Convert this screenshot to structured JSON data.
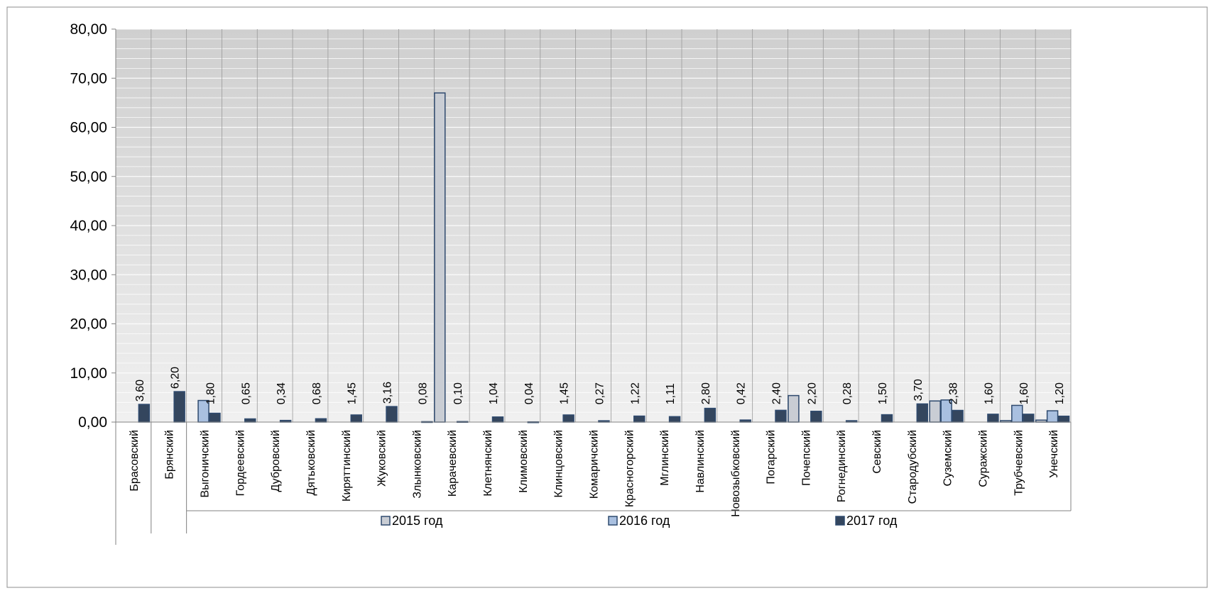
{
  "chart_data": {
    "type": "bar",
    "title": "",
    "xlabel": "",
    "ylabel": "",
    "ylim": [
      0,
      80
    ],
    "yticks": [
      "0,00",
      "10,00",
      "20,00",
      "30,00",
      "40,00",
      "50,00",
      "60,00",
      "70,00",
      "80,00"
    ],
    "grid": true,
    "legend_position": "bottom",
    "categories": [
      "Брасовский",
      "Брянский",
      "Выгоничский",
      "Гордеевский",
      "Дубровский",
      "Дятьковский",
      "Киряттинский",
      "Жуковский",
      "Злынковский",
      "Карачевский",
      "Клетнянский",
      "Климовский",
      "Клинцовский",
      "Комаричский",
      "Красногорский",
      "Мглинский",
      "Навлинский",
      "Новозыбковский",
      "Погарский",
      "Почепский",
      "Рогнединский",
      "Севский",
      "Стародубский",
      "Суземский",
      "Суражский",
      "Трубчевский",
      "Унечский"
    ],
    "series": [
      {
        "name": "2015 год",
        "values": [
          0,
          0,
          0,
          0,
          0,
          0,
          0,
          0,
          0,
          67.0,
          0,
          0,
          0,
          0,
          0,
          0,
          0,
          0,
          0,
          5.4,
          0,
          0,
          0,
          4.3,
          0,
          0.3,
          0.4
        ]
      },
      {
        "name": "2016 год",
        "values": [
          0,
          0,
          4.4,
          0,
          0,
          0,
          0,
          0,
          0,
          0,
          0,
          0,
          0,
          0,
          0,
          0,
          0,
          0,
          0,
          0,
          0,
          0,
          0,
          4.5,
          0,
          3.4,
          2.3
        ]
      },
      {
        "name": "2017 год",
        "values": [
          3.6,
          6.2,
          1.8,
          0.65,
          0.34,
          0.68,
          1.45,
          3.16,
          0.08,
          0.1,
          1.04,
          0.04,
          1.45,
          0.27,
          1.22,
          1.11,
          2.8,
          0.42,
          2.4,
          2.2,
          0.28,
          1.5,
          3.7,
          2.38,
          1.6,
          1.6,
          1.2
        ]
      }
    ],
    "data_labels": [
      "3,60",
      "6,20",
      "1,80",
      "0,65",
      "0,34",
      "0,68",
      "1,45",
      "3,16",
      "0,08",
      "0,10",
      "1,04",
      "0,04",
      "1,45",
      "0,27",
      "1,22",
      "1,11",
      "2,80",
      "0,42",
      "2,40",
      "2,20",
      "0,28",
      "1,50",
      "3,70",
      "2,38",
      "1,60",
      "1,60",
      "1,20"
    ],
    "colors": {
      "2015 год": "#c9cdd4",
      "2016 год": "#a9c0e0",
      "2017 год": "#34465e",
      "edge": "#2f4a6e",
      "plot_bg": "#d9d9d9",
      "grid": "#ffffff",
      "axis": "#808080"
    }
  }
}
